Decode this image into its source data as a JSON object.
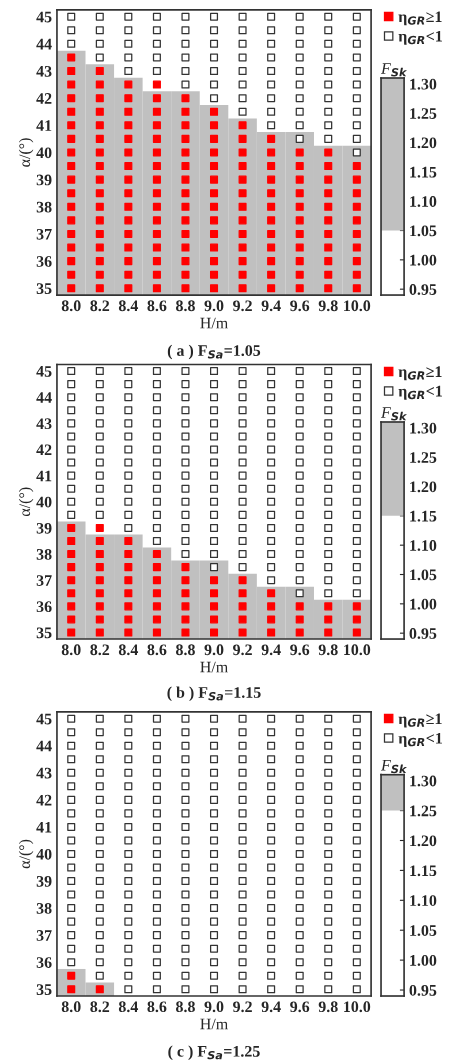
{
  "chart_data": [
    {
      "type": "scatter",
      "xlabel": "H/m",
      "ylabel": "α/(°)",
      "annotations": [
        "( a ) F$_{Sa}$=1.05"
      ],
      "legend": "top right",
      "marker": "square",
      "xlim": [
        7.9,
        10.1
      ],
      "ylim": [
        34.75,
        45.25
      ],
      "xticks": [
        {
          "value": 8,
          "label": "8.0"
        },
        {
          "value": 8.2,
          "label": "8.2"
        },
        {
          "value": 8.4,
          "label": "8.4"
        },
        {
          "value": 8.6,
          "label": "8.6"
        },
        {
          "value": 8.8,
          "label": "8.8"
        },
        {
          "value": 9,
          "label": "9.0"
        },
        {
          "value": 9.2,
          "label": "9.2"
        },
        {
          "value": 9.4,
          "label": "9.4"
        },
        {
          "value": 9.6,
          "label": "9.6"
        },
        {
          "value": 9.8,
          "label": "9.8"
        },
        {
          "value": 10,
          "label": "10.0"
        }
      ],
      "yticks": [
        35,
        36,
        37,
        38,
        39,
        40,
        41,
        42,
        43,
        44,
        45
      ],
      "series": [
        {
          "type": "bar",
          "color": "#c0c0c0",
          "x": [
            8,
            8.2,
            8.4,
            8.6,
            8.8,
            9,
            9.2,
            9.4,
            9.6,
            9.8,
            10
          ],
          "base": [
            34.75,
            34.75,
            34.75,
            34.75,
            34.75,
            34.75,
            34.75,
            34.75,
            34.75,
            34.75,
            34.75
          ],
          "values": [
            9.0,
            8.5,
            8.0,
            7.5,
            7.5,
            7.0,
            6.5,
            6.0,
            6.0,
            5.5,
            5.5
          ]
        },
        {
          "name": "η$_{GR}$≥1",
          "color": "#ff0000",
          "x": [
            8,
            8,
            8,
            8,
            8,
            8,
            8,
            8,
            8,
            8,
            8,
            8,
            8,
            8,
            8,
            8,
            8,
            8,
            8.2,
            8.2,
            8.2,
            8.2,
            8.2,
            8.2,
            8.2,
            8.2,
            8.2,
            8.2,
            8.2,
            8.2,
            8.2,
            8.2,
            8.2,
            8.2,
            8.2,
            8.4,
            8.4,
            8.4,
            8.4,
            8.4,
            8.4,
            8.4,
            8.4,
            8.4,
            8.4,
            8.4,
            8.4,
            8.4,
            8.4,
            8.4,
            8.4,
            8.6,
            8.6,
            8.6,
            8.6,
            8.6,
            8.6,
            8.6,
            8.6,
            8.6,
            8.6,
            8.6,
            8.6,
            8.6,
            8.6,
            8.6,
            8.6,
            8.8,
            8.8,
            8.8,
            8.8,
            8.8,
            8.8,
            8.8,
            8.8,
            8.8,
            8.8,
            8.8,
            8.8,
            8.8,
            8.8,
            8.8,
            9,
            9,
            9,
            9,
            9,
            9,
            9,
            9,
            9,
            9,
            9,
            9,
            9,
            9,
            9.2,
            9.2,
            9.2,
            9.2,
            9.2,
            9.2,
            9.2,
            9.2,
            9.2,
            9.2,
            9.2,
            9.2,
            9.2,
            9.4,
            9.4,
            9.4,
            9.4,
            9.4,
            9.4,
            9.4,
            9.4,
            9.4,
            9.4,
            9.4,
            9.4,
            9.6,
            9.6,
            9.6,
            9.6,
            9.6,
            9.6,
            9.6,
            9.6,
            9.6,
            9.6,
            9.6,
            9.8,
            9.8,
            9.8,
            9.8,
            9.8,
            9.8,
            9.8,
            9.8,
            9.8,
            9.8,
            9.8,
            10,
            10,
            10,
            10,
            10,
            10,
            10,
            10,
            10,
            10
          ],
          "values": [
            35,
            35.5,
            36,
            36.5,
            37,
            37.5,
            38,
            38.5,
            39,
            39.5,
            40,
            40.5,
            41,
            41.5,
            42,
            42.5,
            43,
            43.5,
            35,
            35.5,
            36,
            36.5,
            37,
            37.5,
            38,
            38.5,
            39,
            39.5,
            40,
            40.5,
            41,
            41.5,
            42,
            42.5,
            43,
            35,
            35.5,
            36,
            36.5,
            37,
            37.5,
            38,
            38.5,
            39,
            39.5,
            40,
            40.5,
            41,
            41.5,
            42,
            42.5,
            35,
            35.5,
            36,
            36.5,
            37,
            37.5,
            38,
            38.5,
            39,
            39.5,
            40,
            40.5,
            41,
            41.5,
            42,
            42.5,
            35,
            35.5,
            36,
            36.5,
            37,
            37.5,
            38,
            38.5,
            39,
            39.5,
            40,
            40.5,
            41,
            41.5,
            42,
            35,
            35.5,
            36,
            36.5,
            37,
            37.5,
            38,
            38.5,
            39,
            39.5,
            40,
            40.5,
            41,
            41.5,
            35,
            35.5,
            36,
            36.5,
            37,
            37.5,
            38,
            38.5,
            39,
            39.5,
            40,
            40.5,
            41,
            35,
            35.5,
            36,
            36.5,
            37,
            37.5,
            38,
            38.5,
            39,
            39.5,
            40,
            40.5,
            35,
            35.5,
            36,
            36.5,
            37,
            37.5,
            38,
            38.5,
            39,
            39.5,
            40,
            35,
            35.5,
            36,
            36.5,
            37,
            37.5,
            38,
            38.5,
            39,
            39.5,
            40,
            35,
            35.5,
            36,
            36.5,
            37,
            37.5,
            38,
            38.5,
            39,
            39.5
          ]
        },
        {
          "name": "η$_{GR}$<1",
          "color": "#ffffff",
          "x": [
            8,
            8,
            8,
            8.2,
            8.2,
            8.2,
            8.2,
            8.4,
            8.4,
            8.4,
            8.4,
            8.4,
            8.6,
            8.6,
            8.6,
            8.6,
            8.6,
            8.8,
            8.8,
            8.8,
            8.8,
            8.8,
            8.8,
            9,
            9,
            9,
            9,
            9,
            9,
            9,
            9.2,
            9.2,
            9.2,
            9.2,
            9.2,
            9.2,
            9.2,
            9.2,
            9.4,
            9.4,
            9.4,
            9.4,
            9.4,
            9.4,
            9.4,
            9.4,
            9.4,
            9.6,
            9.6,
            9.6,
            9.6,
            9.6,
            9.6,
            9.6,
            9.6,
            9.6,
            9.6,
            9.8,
            9.8,
            9.8,
            9.8,
            9.8,
            9.8,
            9.8,
            9.8,
            9.8,
            9.8,
            10,
            10,
            10,
            10,
            10,
            10,
            10,
            10,
            10,
            10,
            10
          ],
          "values": [
            44,
            44.5,
            45,
            43.5,
            44,
            44.5,
            45,
            43,
            43.5,
            44,
            44.5,
            45,
            43,
            43.5,
            44,
            44.5,
            45,
            42.5,
            43,
            43.5,
            44,
            44.5,
            45,
            42,
            42.5,
            43,
            43.5,
            44,
            44.5,
            45,
            41.5,
            42,
            42.5,
            43,
            43.5,
            44,
            44.5,
            45,
            41,
            41.5,
            42,
            42.5,
            43,
            43.5,
            44,
            44.5,
            45,
            40.5,
            41,
            41.5,
            42,
            42.5,
            43,
            43.5,
            44,
            44.5,
            45,
            40.5,
            41,
            41.5,
            42,
            42.5,
            43,
            43.5,
            44,
            44.5,
            45,
            40,
            40.5,
            41,
            41.5,
            42,
            42.5,
            43,
            43.5,
            44,
            44.5,
            45
          ]
        }
      ]
    },
    {
      "type": "bar",
      "title": "F$_{Sk}$",
      "categories": [
        null
      ],
      "base": [
        1.05
      ],
      "values": [
        0.26
      ],
      "colors": [
        "#c0c0c0"
      ],
      "ylim": [
        0.94,
        1.31
      ],
      "yticks": [
        0.95,
        {
          "value": 1.0,
          "label": "1.00"
        },
        1.05,
        {
          "value": 1.1,
          "label": "1.10"
        },
        1.15,
        {
          "value": 1.2,
          "label": "1.20"
        },
        1.25,
        {
          "value": 1.3,
          "label": "1.30"
        }
      ]
    },
    {
      "type": "scatter",
      "xlabel": "H/m",
      "ylabel": "α/(°)",
      "annotations": [
        "( b ) F$_{Sa}$=1.15"
      ],
      "legend": "top right",
      "marker": "square",
      "xlim": [
        7.9,
        10.1
      ],
      "ylim": [
        34.75,
        45.25
      ],
      "xticks": [
        {
          "value": 8,
          "label": "8.0"
        },
        {
          "value": 8.2,
          "label": "8.2"
        },
        {
          "value": 8.4,
          "label": "8.4"
        },
        {
          "value": 8.6,
          "label": "8.6"
        },
        {
          "value": 8.8,
          "label": "8.8"
        },
        {
          "value": 9,
          "label": "9.0"
        },
        {
          "value": 9.2,
          "label": "9.2"
        },
        {
          "value": 9.4,
          "label": "9.4"
        },
        {
          "value": 9.6,
          "label": "9.6"
        },
        {
          "value": 9.8,
          "label": "9.8"
        },
        {
          "value": 10,
          "label": "10.0"
        }
      ],
      "yticks": [
        35,
        36,
        37,
        38,
        39,
        40,
        41,
        42,
        43,
        44,
        45
      ],
      "series": [
        {
          "type": "bar",
          "color": "#c0c0c0",
          "x": [
            8,
            8.2,
            8.4,
            8.6,
            8.8,
            9,
            9.2,
            9.4,
            9.6,
            9.8,
            10
          ],
          "base": [
            34.75,
            34.75,
            34.75,
            34.75,
            34.75,
            34.75,
            34.75,
            34.75,
            34.75,
            34.75,
            34.75
          ],
          "values": [
            4.5,
            4.0,
            4.0,
            3.5,
            3.0,
            3.0,
            2.5,
            2.0,
            2.0,
            1.5,
            1.5
          ]
        },
        {
          "name": "η$_{GR}$≥1",
          "color": "#ff0000",
          "x": [
            8,
            8,
            8,
            8,
            8,
            8,
            8,
            8,
            8,
            8.2,
            8.2,
            8.2,
            8.2,
            8.2,
            8.2,
            8.2,
            8.2,
            8.2,
            8.4,
            8.4,
            8.4,
            8.4,
            8.4,
            8.4,
            8.4,
            8.4,
            8.6,
            8.6,
            8.6,
            8.6,
            8.6,
            8.6,
            8.6,
            8.8,
            8.8,
            8.8,
            8.8,
            8.8,
            8.8,
            9,
            9,
            9,
            9,
            9,
            9.2,
            9.2,
            9.2,
            9.2,
            9.2,
            9.4,
            9.4,
            9.4,
            9.4,
            9.6,
            9.6,
            9.6,
            9.8,
            9.8,
            9.8,
            10,
            10,
            10
          ],
          "values": [
            35,
            35.5,
            36,
            36.5,
            37,
            37.5,
            38,
            38.5,
            39,
            35,
            35.5,
            36,
            36.5,
            37,
            37.5,
            38,
            38.5,
            39,
            35,
            35.5,
            36,
            36.5,
            37,
            37.5,
            38,
            38.5,
            35,
            35.5,
            36,
            36.5,
            37,
            37.5,
            38,
            35,
            35.5,
            36,
            36.5,
            37,
            37.5,
            35,
            35.5,
            36,
            36.5,
            37,
            35,
            35.5,
            36,
            36.5,
            37,
            35,
            35.5,
            36,
            36.5,
            35,
            35.5,
            36,
            35,
            35.5,
            36,
            35,
            35.5,
            36
          ]
        },
        {
          "name": "η$_{GR}$<1",
          "color": "#ffffff",
          "x": [
            8,
            8,
            8,
            8,
            8,
            8,
            8,
            8,
            8,
            8,
            8,
            8,
            8.2,
            8.2,
            8.2,
            8.2,
            8.2,
            8.2,
            8.2,
            8.2,
            8.2,
            8.2,
            8.2,
            8.2,
            8.4,
            8.4,
            8.4,
            8.4,
            8.4,
            8.4,
            8.4,
            8.4,
            8.4,
            8.4,
            8.4,
            8.4,
            8.4,
            8.6,
            8.6,
            8.6,
            8.6,
            8.6,
            8.6,
            8.6,
            8.6,
            8.6,
            8.6,
            8.6,
            8.6,
            8.6,
            8.6,
            8.8,
            8.8,
            8.8,
            8.8,
            8.8,
            8.8,
            8.8,
            8.8,
            8.8,
            8.8,
            8.8,
            8.8,
            8.8,
            8.8,
            8.8,
            9,
            9,
            9,
            9,
            9,
            9,
            9,
            9,
            9,
            9,
            9,
            9,
            9,
            9,
            9,
            9,
            9.2,
            9.2,
            9.2,
            9.2,
            9.2,
            9.2,
            9.2,
            9.2,
            9.2,
            9.2,
            9.2,
            9.2,
            9.2,
            9.2,
            9.2,
            9.2,
            9.4,
            9.4,
            9.4,
            9.4,
            9.4,
            9.4,
            9.4,
            9.4,
            9.4,
            9.4,
            9.4,
            9.4,
            9.4,
            9.4,
            9.4,
            9.4,
            9.4,
            9.6,
            9.6,
            9.6,
            9.6,
            9.6,
            9.6,
            9.6,
            9.6,
            9.6,
            9.6,
            9.6,
            9.6,
            9.6,
            9.6,
            9.6,
            9.6,
            9.6,
            9.6,
            9.8,
            9.8,
            9.8,
            9.8,
            9.8,
            9.8,
            9.8,
            9.8,
            9.8,
            9.8,
            9.8,
            9.8,
            9.8,
            9.8,
            9.8,
            9.8,
            9.8,
            9.8,
            10,
            10,
            10,
            10,
            10,
            10,
            10,
            10,
            10,
            10,
            10,
            10,
            10,
            10,
            10,
            10,
            10,
            10
          ],
          "values": [
            39.5,
            40,
            40.5,
            41,
            41.5,
            42,
            42.5,
            43,
            43.5,
            44,
            44.5,
            45,
            39.5,
            40,
            40.5,
            41,
            41.5,
            42,
            42.5,
            43,
            43.5,
            44,
            44.5,
            45,
            39,
            39.5,
            40,
            40.5,
            41,
            41.5,
            42,
            42.5,
            43,
            43.5,
            44,
            44.5,
            45,
            38.5,
            39,
            39.5,
            40,
            40.5,
            41,
            41.5,
            42,
            42.5,
            43,
            43.5,
            44,
            44.5,
            45,
            38,
            38.5,
            39,
            39.5,
            40,
            40.5,
            41,
            41.5,
            42,
            42.5,
            43,
            43.5,
            44,
            44.5,
            45,
            37.5,
            38,
            38.5,
            39,
            39.5,
            40,
            40.5,
            41,
            41.5,
            42,
            42.5,
            43,
            43.5,
            44,
            44.5,
            45,
            37.5,
            38,
            38.5,
            39,
            39.5,
            40,
            40.5,
            41,
            41.5,
            42,
            42.5,
            43,
            43.5,
            44,
            44.5,
            45,
            37,
            37.5,
            38,
            38.5,
            39,
            39.5,
            40,
            40.5,
            41,
            41.5,
            42,
            42.5,
            43,
            43.5,
            44,
            44.5,
            45,
            36.5,
            37,
            37.5,
            38,
            38.5,
            39,
            39.5,
            40,
            40.5,
            41,
            41.5,
            42,
            42.5,
            43,
            43.5,
            44,
            44.5,
            45,
            36.5,
            37,
            37.5,
            38,
            38.5,
            39,
            39.5,
            40,
            40.5,
            41,
            41.5,
            42,
            42.5,
            43,
            43.5,
            44,
            44.5,
            45,
            36.5,
            37,
            37.5,
            38,
            38.5,
            39,
            39.5,
            40,
            40.5,
            41,
            41.5,
            42,
            42.5,
            43,
            43.5,
            44,
            44.5,
            45
          ]
        }
      ]
    },
    {
      "type": "bar",
      "title": "F$_{Sk}$",
      "categories": [
        null
      ],
      "base": [
        1.15
      ],
      "values": [
        0.16
      ],
      "colors": [
        "#c0c0c0"
      ],
      "ylim": [
        0.94,
        1.31
      ],
      "yticks": [
        0.95,
        {
          "value": 1.0,
          "label": "1.00"
        },
        1.05,
        {
          "value": 1.1,
          "label": "1.10"
        },
        1.15,
        {
          "value": 1.2,
          "label": "1.20"
        },
        1.25,
        {
          "value": 1.3,
          "label": "1.30"
        }
      ]
    },
    {
      "type": "scatter",
      "xlabel": "H/m",
      "ylabel": "α/(°)",
      "annotations": [
        "( c ) F$_{Sa}$=1.25"
      ],
      "legend": "top right",
      "marker": "square",
      "xlim": [
        7.9,
        10.1
      ],
      "ylim": [
        34.75,
        45.25
      ],
      "xticks": [
        {
          "value": 8,
          "label": "8.0"
        },
        {
          "value": 8.2,
          "label": "8.2"
        },
        {
          "value": 8.4,
          "label": "8.4"
        },
        {
          "value": 8.6,
          "label": "8.6"
        },
        {
          "value": 8.8,
          "label": "8.8"
        },
        {
          "value": 9,
          "label": "9.0"
        },
        {
          "value": 9.2,
          "label": "9.2"
        },
        {
          "value": 9.4,
          "label": "9.4"
        },
        {
          "value": 9.6,
          "label": "9.6"
        },
        {
          "value": 9.8,
          "label": "9.8"
        },
        {
          "value": 10,
          "label": "10.0"
        }
      ],
      "yticks": [
        35,
        36,
        37,
        38,
        39,
        40,
        41,
        42,
        43,
        44,
        45
      ],
      "series": [
        {
          "type": "bar",
          "color": "#c0c0c0",
          "x": [
            8,
            8.2
          ],
          "base": [
            34.75,
            34.75
          ],
          "values": [
            1.0,
            0.5
          ]
        },
        {
          "name": "η$_{GR}$≥1",
          "color": "#ff0000",
          "x": [
            8,
            8,
            8.2
          ],
          "values": [
            35,
            35.5,
            35
          ]
        },
        {
          "name": "η$_{GR}$<1",
          "color": "#ffffff",
          "x": [
            8,
            8,
            8,
            8,
            8,
            8,
            8,
            8,
            8,
            8,
            8,
            8,
            8,
            8,
            8,
            8,
            8,
            8,
            8,
            8.2,
            8.2,
            8.2,
            8.2,
            8.2,
            8.2,
            8.2,
            8.2,
            8.2,
            8.2,
            8.2,
            8.2,
            8.2,
            8.2,
            8.2,
            8.2,
            8.2,
            8.2,
            8.2,
            8.2,
            8.4,
            8.4,
            8.4,
            8.4,
            8.4,
            8.4,
            8.4,
            8.4,
            8.4,
            8.4,
            8.4,
            8.4,
            8.4,
            8.4,
            8.4,
            8.4,
            8.4,
            8.4,
            8.4,
            8.4,
            8.4,
            8.6,
            8.6,
            8.6,
            8.6,
            8.6,
            8.6,
            8.6,
            8.6,
            8.6,
            8.6,
            8.6,
            8.6,
            8.6,
            8.6,
            8.6,
            8.6,
            8.6,
            8.6,
            8.6,
            8.6,
            8.6,
            8.8,
            8.8,
            8.8,
            8.8,
            8.8,
            8.8,
            8.8,
            8.8,
            8.8,
            8.8,
            8.8,
            8.8,
            8.8,
            8.8,
            8.8,
            8.8,
            8.8,
            8.8,
            8.8,
            8.8,
            8.8,
            9,
            9,
            9,
            9,
            9,
            9,
            9,
            9,
            9,
            9,
            9,
            9,
            9,
            9,
            9,
            9,
            9,
            9,
            9,
            9,
            9,
            9.2,
            9.2,
            9.2,
            9.2,
            9.2,
            9.2,
            9.2,
            9.2,
            9.2,
            9.2,
            9.2,
            9.2,
            9.2,
            9.2,
            9.2,
            9.2,
            9.2,
            9.2,
            9.2,
            9.2,
            9.2,
            9.4,
            9.4,
            9.4,
            9.4,
            9.4,
            9.4,
            9.4,
            9.4,
            9.4,
            9.4,
            9.4,
            9.4,
            9.4,
            9.4,
            9.4,
            9.4,
            9.4,
            9.4,
            9.4,
            9.4,
            9.4,
            9.6,
            9.6,
            9.6,
            9.6,
            9.6,
            9.6,
            9.6,
            9.6,
            9.6,
            9.6,
            9.6,
            9.6,
            9.6,
            9.6,
            9.6,
            9.6,
            9.6,
            9.6,
            9.6,
            9.6,
            9.6,
            9.8,
            9.8,
            9.8,
            9.8,
            9.8,
            9.8,
            9.8,
            9.8,
            9.8,
            9.8,
            9.8,
            9.8,
            9.8,
            9.8,
            9.8,
            9.8,
            9.8,
            9.8,
            9.8,
            9.8,
            9.8,
            10,
            10,
            10,
            10,
            10,
            10,
            10,
            10,
            10,
            10,
            10,
            10,
            10,
            10,
            10,
            10,
            10,
            10,
            10,
            10,
            10
          ],
          "values": [
            36,
            36.5,
            37,
            37.5,
            38,
            38.5,
            39,
            39.5,
            40,
            40.5,
            41,
            41.5,
            42,
            42.5,
            43,
            43.5,
            44,
            44.5,
            45,
            35.5,
            36,
            36.5,
            37,
            37.5,
            38,
            38.5,
            39,
            39.5,
            40,
            40.5,
            41,
            41.5,
            42,
            42.5,
            43,
            43.5,
            44,
            44.5,
            45,
            35,
            35.5,
            36,
            36.5,
            37,
            37.5,
            38,
            38.5,
            39,
            39.5,
            40,
            40.5,
            41,
            41.5,
            42,
            42.5,
            43,
            43.5,
            44,
            44.5,
            45,
            35,
            35.5,
            36,
            36.5,
            37,
            37.5,
            38,
            38.5,
            39,
            39.5,
            40,
            40.5,
            41,
            41.5,
            42,
            42.5,
            43,
            43.5,
            44,
            44.5,
            45,
            35,
            35.5,
            36,
            36.5,
            37,
            37.5,
            38,
            38.5,
            39,
            39.5,
            40,
            40.5,
            41,
            41.5,
            42,
            42.5,
            43,
            43.5,
            44,
            44.5,
            45,
            35,
            35.5,
            36,
            36.5,
            37,
            37.5,
            38,
            38.5,
            39,
            39.5,
            40,
            40.5,
            41,
            41.5,
            42,
            42.5,
            43,
            43.5,
            44,
            44.5,
            45,
            35,
            35.5,
            36,
            36.5,
            37,
            37.5,
            38,
            38.5,
            39,
            39.5,
            40,
            40.5,
            41,
            41.5,
            42,
            42.5,
            43,
            43.5,
            44,
            44.5,
            45,
            35,
            35.5,
            36,
            36.5,
            37,
            37.5,
            38,
            38.5,
            39,
            39.5,
            40,
            40.5,
            41,
            41.5,
            42,
            42.5,
            43,
            43.5,
            44,
            44.5,
            45,
            35,
            35.5,
            36,
            36.5,
            37,
            37.5,
            38,
            38.5,
            39,
            39.5,
            40,
            40.5,
            41,
            41.5,
            42,
            42.5,
            43,
            43.5,
            44,
            44.5,
            45,
            35,
            35.5,
            36,
            36.5,
            37,
            37.5,
            38,
            38.5,
            39,
            39.5,
            40,
            40.5,
            41,
            41.5,
            42,
            42.5,
            43,
            43.5,
            44,
            44.5,
            45,
            35,
            35.5,
            36,
            36.5,
            37,
            37.5,
            38,
            38.5,
            39,
            39.5,
            40,
            40.5,
            41,
            41.5,
            42,
            42.5,
            43,
            43.5,
            44,
            44.5,
            45
          ]
        }
      ]
    },
    {
      "type": "bar",
      "title": "F$_{Sk}$",
      "categories": [
        null
      ],
      "base": [
        1.25
      ],
      "values": [
        0.06
      ],
      "colors": [
        "#c0c0c0"
      ],
      "ylim": [
        0.94,
        1.31
      ],
      "yticks": [
        0.95,
        {
          "value": 1.0,
          "label": "1.00"
        },
        1.05,
        {
          "value": 1.1,
          "label": "1.10"
        },
        1.15,
        {
          "value": 1.2,
          "label": "1.20"
        },
        1.25,
        {
          "value": 1.3,
          "label": "1.30"
        }
      ]
    }
  ]
}
